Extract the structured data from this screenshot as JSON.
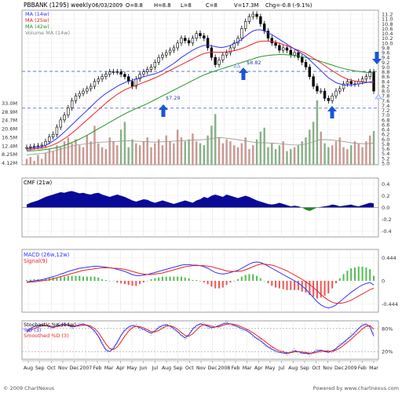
{
  "header": {
    "title": "PBBANK (1295) weekly",
    "date": "06/03/2009",
    "open": "O=8.8",
    "high": "H=8.8",
    "low": "L=8",
    "close": "C=8",
    "volume": "V=17.3M",
    "change": "Chg=-0.8 (-9.1%)"
  },
  "footer": {
    "copyright": "© 2009 ChartNexus",
    "powered": "Powered by www.chartnexus.com"
  },
  "colors": {
    "ma14": "#3333ff",
    "ma25": "#ee2222",
    "ma42": "#229922",
    "volume_up": "#c89890",
    "volume_down": "#88b088",
    "cmf_fill": "#0a0a99",
    "macd": "#3333ff",
    "signal": "#ee2222",
    "annotation_arrow": "#1a55d6",
    "support_line": "#3355cc"
  },
  "chart_data": [
    {
      "type": "candlestick",
      "title": "PBBANK (1295) weekly",
      "legend": [
        "MA (14w)",
        "MA (25w)",
        "MA (42w)",
        "Volume MA (14w)"
      ],
      "x_tick_labels": [
        "Aug",
        "Sep",
        "Oct",
        "Nov",
        "Dec",
        "2007",
        "Feb",
        "Mar",
        "Apr",
        "May",
        "Jun",
        "Jul",
        "Aug",
        "Sep",
        "Oct",
        "Nov",
        "Dec",
        "2008",
        "Feb",
        "Mar",
        "Apr",
        "May",
        "Jul",
        "Aug",
        "Sep",
        "Oct",
        "Nov",
        "Dec",
        "2009",
        "Feb",
        "Mar"
      ],
      "y_ticks": [
        "11.2",
        "11.0",
        "10.8",
        "10.6",
        "10.4",
        "10.2",
        "10.0",
        "9.8",
        "9.6",
        "9.4",
        "9.2",
        "9.0",
        "8.8",
        "8.6",
        "8.4",
        "8.2",
        "8.0",
        "7.8",
        "7.6",
        "7.4",
        "7.2",
        "7.0",
        "6.8",
        "6.6",
        "6.4",
        "6.2",
        "6.0",
        "5.8",
        "5.6",
        "5.4",
        "5.2",
        "5.0"
      ],
      "ylim": [
        5.0,
        11.3
      ],
      "volume_ticks": [
        "33.0M",
        "28.9M",
        "24.7M",
        "20.6M",
        "16.5M",
        "12.4M",
        "8.25M",
        "4.12M"
      ],
      "annotations": [
        "$7.29",
        "$8.82"
      ],
      "support_levels": [
        8.82,
        7.29
      ],
      "close_weekly": [
        5.65,
        5.68,
        5.7,
        5.72,
        5.75,
        5.9,
        6.1,
        6.2,
        6.5,
        6.8,
        7.0,
        7.3,
        7.6,
        7.8,
        7.9,
        8.0,
        8.1,
        8.2,
        8.4,
        8.5,
        8.6,
        8.7,
        8.8,
        8.8,
        8.8,
        8.7,
        8.6,
        8.4,
        8.2,
        8.5,
        8.7,
        8.8,
        8.9,
        9.0,
        9.2,
        9.4,
        9.5,
        9.6,
        9.7,
        9.8,
        10.0,
        10.2,
        10.1,
        10.0,
        10.2,
        10.4,
        10.3,
        10.2,
        9.8,
        9.4,
        9.1,
        9.3,
        9.5,
        9.6,
        9.8,
        10.0,
        10.2,
        10.6,
        10.9,
        11.1,
        11.2,
        11.1,
        10.8,
        10.5,
        10.2,
        10.0,
        9.9,
        9.7,
        9.8,
        9.7,
        9.5,
        9.6,
        9.4,
        9.2,
        9.0,
        8.6,
        8.2,
        8.0,
        8.0,
        7.7,
        7.6,
        7.8,
        8.0,
        8.1,
        8.3,
        8.4,
        8.3,
        8.3,
        8.4,
        8.5,
        8.6,
        8.8,
        8.0
      ],
      "ma14": [
        5.6,
        5.62,
        5.64,
        5.66,
        5.68,
        5.74,
        5.82,
        5.92,
        6.03,
        6.16,
        6.3,
        6.45,
        6.6,
        6.75,
        6.9,
        7.05,
        7.2,
        7.35,
        7.5,
        7.65,
        7.78,
        7.9,
        8.0,
        8.1,
        8.2,
        8.28,
        8.35,
        8.42,
        8.45,
        8.5,
        8.55,
        8.6,
        8.64,
        8.68,
        8.72,
        8.78,
        8.85,
        8.95,
        9.05,
        9.15,
        9.27,
        9.4,
        9.5,
        9.6,
        9.7,
        9.78,
        9.85,
        9.9,
        9.9,
        9.88,
        9.85,
        9.82,
        9.82,
        9.85,
        9.9,
        9.98,
        10.05,
        10.15,
        10.28,
        10.4,
        10.5,
        10.55,
        10.55,
        10.5,
        10.42,
        10.35,
        10.25,
        10.15,
        10.05,
        9.95,
        9.85,
        9.75,
        9.65,
        9.55,
        9.45,
        9.3,
        9.15,
        9.0,
        8.85,
        8.7,
        8.55,
        8.45,
        8.35,
        8.3,
        8.25,
        8.25,
        8.25,
        8.28,
        8.3,
        8.32,
        8.35,
        8.38,
        8.4
      ],
      "ma25": [
        5.55,
        5.57,
        5.59,
        5.61,
        5.63,
        5.66,
        5.7,
        5.76,
        5.83,
        5.92,
        6.02,
        6.13,
        6.25,
        6.38,
        6.52,
        6.66,
        6.8,
        6.94,
        7.08,
        7.22,
        7.36,
        7.5,
        7.63,
        7.75,
        7.86,
        7.96,
        8.05,
        8.12,
        8.18,
        8.24,
        8.3,
        8.36,
        8.42,
        8.48,
        8.55,
        8.62,
        8.7,
        8.78,
        8.86,
        8.94,
        9.02,
        9.1,
        9.18,
        9.26,
        9.34,
        9.42,
        9.5,
        9.56,
        9.6,
        9.62,
        9.62,
        9.62,
        9.62,
        9.63,
        9.65,
        9.68,
        9.72,
        9.77,
        9.83,
        9.9,
        9.97,
        10.03,
        10.07,
        10.08,
        10.08,
        10.06,
        10.03,
        9.99,
        9.94,
        9.88,
        9.82,
        9.76,
        9.7,
        9.63,
        9.55,
        9.46,
        9.37,
        9.27,
        9.17,
        9.06,
        8.95,
        8.85,
        8.75,
        8.65,
        8.57,
        8.5,
        8.45,
        8.42,
        8.4,
        8.38,
        8.37,
        8.36,
        8.35
      ],
      "ma42": [
        5.5,
        5.51,
        5.52,
        5.53,
        5.55,
        5.57,
        5.59,
        5.62,
        5.65,
        5.69,
        5.74,
        5.8,
        5.86,
        5.93,
        6.0,
        6.08,
        6.16,
        6.25,
        6.34,
        6.43,
        6.52,
        6.61,
        6.7,
        6.79,
        6.88,
        6.97,
        7.05,
        7.13,
        7.2,
        7.27,
        7.34,
        7.41,
        7.48,
        7.56,
        7.64,
        7.72,
        7.8,
        7.88,
        7.96,
        8.04,
        8.12,
        8.2,
        8.28,
        8.36,
        8.44,
        8.52,
        8.6,
        8.67,
        8.73,
        8.79,
        8.84,
        8.89,
        8.94,
        8.99,
        9.04,
        9.09,
        9.14,
        9.19,
        9.24,
        9.29,
        9.34,
        9.39,
        9.43,
        9.46,
        9.48,
        9.5,
        9.51,
        9.52,
        9.52,
        9.51,
        9.5,
        9.48,
        9.46,
        9.43,
        9.4,
        9.36,
        9.32,
        9.28,
        9.23,
        9.18,
        9.13,
        9.08,
        9.03,
        8.98,
        8.94,
        8.9,
        8.87,
        8.84,
        8.82,
        8.8,
        8.78,
        8.77,
        8.76
      ],
      "volume_m": [
        3,
        4,
        2,
        5,
        3,
        6,
        8,
        7,
        10,
        9,
        12,
        14,
        11,
        13,
        10,
        9,
        15,
        12,
        20,
        11,
        9,
        8,
        14,
        12,
        10,
        18,
        22,
        9,
        13,
        11,
        10,
        12,
        14,
        9,
        11,
        13,
        10,
        15,
        12,
        11,
        18,
        14,
        12,
        13,
        16,
        12,
        11,
        10,
        15,
        20,
        26,
        14,
        11,
        13,
        12,
        10,
        9,
        11,
        14,
        8,
        10,
        13,
        17,
        19,
        9,
        11,
        8,
        10,
        12,
        7,
        8,
        9,
        10,
        12,
        14,
        18,
        22,
        33,
        17,
        11,
        9,
        10,
        12,
        14,
        9,
        8,
        10,
        12,
        11,
        9,
        12,
        15,
        17.3
      ],
      "volume_ma14": [
        5,
        5.2,
        5.4,
        5.6,
        5.8,
        6.1,
        6.5,
        7,
        7.5,
        8,
        8.5,
        9,
        9.5,
        10,
        10.3,
        10.5,
        10.8,
        11,
        11.3,
        11.5,
        11.6,
        11.7,
        11.8,
        11.9,
        12,
        12.1,
        12.2,
        12.3,
        12.2,
        12.1,
        12,
        11.9,
        11.8,
        11.7,
        11.6,
        11.7,
        11.8,
        11.9,
        12,
        12.1,
        12.2,
        12.3,
        12.4,
        12.5,
        12.6,
        12.7,
        12.8,
        12.9,
        13.1,
        13.4,
        13.8,
        13.9,
        13.8,
        13.6,
        13.4,
        13.1,
        12.8,
        12.5,
        12.2,
        11.9,
        11.6,
        11.4,
        11.3,
        11.3,
        11.2,
        11.1,
        11,
        10.8,
        10.6,
        10.4,
        10.2,
        10.1,
        10.1,
        10.3,
        10.6,
        11.1,
        11.7,
        12.5,
        12.8,
        12.9,
        12.8,
        12.6,
        12.4,
        12.2,
        11.9,
        11.6,
        11.3,
        11.1,
        10.9,
        10.8,
        10.8,
        10.9,
        11.1
      ]
    },
    {
      "type": "area",
      "title": "CMF (21w)",
      "y_ticks": [
        "0.4",
        "0.2",
        "0.0",
        "-0.2",
        "-0.4"
      ],
      "ylim": [
        -0.5,
        0.5
      ],
      "values": [
        0.05,
        0.08,
        0.1,
        0.12,
        0.15,
        0.18,
        0.2,
        0.22,
        0.24,
        0.26,
        0.25,
        0.27,
        0.28,
        0.26,
        0.24,
        0.25,
        0.23,
        0.22,
        0.24,
        0.25,
        0.22,
        0.2,
        0.18,
        0.2,
        0.22,
        0.2,
        0.18,
        0.15,
        0.12,
        0.1,
        0.12,
        0.14,
        0.13,
        0.1,
        0.08,
        0.1,
        0.12,
        0.1,
        0.08,
        0.06,
        0.08,
        0.1,
        0.12,
        0.1,
        0.08,
        0.12,
        0.14,
        0.18,
        0.16,
        0.2,
        0.22,
        0.2,
        0.18,
        0.22,
        0.2,
        0.18,
        0.16,
        0.18,
        0.2,
        0.18,
        0.15,
        0.12,
        0.1,
        0.08,
        0.06,
        0.05,
        0.06,
        0.08,
        0.06,
        0.04,
        0.02,
        0.03,
        0.02,
        0.0,
        -0.04,
        -0.06,
        -0.03,
        0.0,
        0.01,
        0.02,
        0.03,
        0.05,
        0.04,
        0.02,
        0.03,
        0.04,
        0.05,
        0.03,
        0.02,
        0.04,
        0.06,
        0.08,
        0.07
      ]
    },
    {
      "type": "line",
      "title": "MACD (26w,12w)",
      "legend": [
        "MACD (26w,12w)",
        "Signal(9)"
      ],
      "y_ticks": [
        "0.444",
        "0",
        "-0.444"
      ],
      "ylim": [
        -0.6,
        0.6
      ],
      "macd": [
        -0.02,
        -0.01,
        0.0,
        0.01,
        0.02,
        0.04,
        0.06,
        0.08,
        0.1,
        0.13,
        0.15,
        0.18,
        0.2,
        0.22,
        0.24,
        0.25,
        0.26,
        0.27,
        0.28,
        0.28,
        0.27,
        0.26,
        0.25,
        0.24,
        0.22,
        0.2,
        0.18,
        0.15,
        0.12,
        0.1,
        0.1,
        0.11,
        0.12,
        0.14,
        0.16,
        0.18,
        0.2,
        0.22,
        0.24,
        0.26,
        0.28,
        0.3,
        0.31,
        0.31,
        0.3,
        0.3,
        0.29,
        0.27,
        0.24,
        0.2,
        0.16,
        0.14,
        0.13,
        0.14,
        0.16,
        0.18,
        0.2,
        0.24,
        0.28,
        0.32,
        0.35,
        0.36,
        0.35,
        0.32,
        0.28,
        0.24,
        0.2,
        0.16,
        0.12,
        0.08,
        0.04,
        0.0,
        -0.04,
        -0.1,
        -0.16,
        -0.24,
        -0.32,
        -0.4,
        -0.46,
        -0.5,
        -0.52,
        -0.5,
        -0.46,
        -0.4,
        -0.34,
        -0.28,
        -0.22,
        -0.17,
        -0.12,
        -0.08,
        -0.05,
        -0.03,
        -0.08
      ],
      "signal": [
        -0.03,
        -0.025,
        -0.02,
        -0.01,
        0.0,
        0.01,
        0.02,
        0.04,
        0.06,
        0.08,
        0.1,
        0.12,
        0.14,
        0.16,
        0.18,
        0.2,
        0.21,
        0.22,
        0.23,
        0.24,
        0.25,
        0.25,
        0.25,
        0.24,
        0.24,
        0.23,
        0.22,
        0.2,
        0.18,
        0.16,
        0.14,
        0.13,
        0.12,
        0.12,
        0.13,
        0.14,
        0.15,
        0.17,
        0.19,
        0.21,
        0.23,
        0.25,
        0.27,
        0.28,
        0.29,
        0.29,
        0.29,
        0.29,
        0.28,
        0.27,
        0.25,
        0.23,
        0.21,
        0.19,
        0.18,
        0.18,
        0.18,
        0.19,
        0.21,
        0.24,
        0.27,
        0.3,
        0.32,
        0.32,
        0.31,
        0.3,
        0.28,
        0.25,
        0.22,
        0.19,
        0.15,
        0.11,
        0.07,
        0.03,
        -0.02,
        -0.07,
        -0.13,
        -0.19,
        -0.26,
        -0.32,
        -0.37,
        -0.41,
        -0.43,
        -0.43,
        -0.42,
        -0.4,
        -0.37,
        -0.33,
        -0.29,
        -0.25,
        -0.21,
        -0.17,
        -0.14
      ]
    },
    {
      "type": "line",
      "title": "Stochastic %K (14w)",
      "legend": [
        "Stochastic %K (14w)",
        "%D (3)",
        "Smoothed %D (3)"
      ],
      "y_ticks": [
        "80%",
        "20%"
      ],
      "ylim": [
        0,
        100
      ],
      "d3": [
        75,
        80,
        85,
        88,
        90,
        88,
        85,
        82,
        86,
        90,
        92,
        88,
        84,
        86,
        90,
        92,
        88,
        82,
        74,
        60,
        40,
        25,
        20,
        28,
        45,
        62,
        75,
        84,
        88,
        86,
        82,
        78,
        72,
        68,
        74,
        82,
        88,
        90,
        86,
        80,
        72,
        62,
        56,
        64,
        78,
        88,
        92,
        90,
        86,
        82,
        84,
        88,
        92,
        94,
        92,
        88,
        84,
        80,
        76,
        70,
        62,
        54,
        48,
        40,
        32,
        26,
        22,
        18,
        16,
        15,
        18,
        22,
        20,
        16,
        15,
        14,
        18,
        22,
        24,
        20,
        18,
        22,
        28,
        36,
        44,
        52,
        60,
        70,
        80,
        88,
        92,
        84,
        60
      ],
      "smoothed": [
        72,
        76,
        80,
        84,
        87,
        88,
        87,
        85,
        85,
        87,
        89,
        89,
        87,
        86,
        87,
        89,
        89,
        86,
        80,
        70,
        55,
        40,
        28,
        25,
        32,
        45,
        60,
        73,
        82,
        86,
        85,
        82,
        77,
        72,
        71,
        75,
        81,
        86,
        87,
        84,
        78,
        70,
        62,
        60,
        66,
        76,
        86,
        90,
        89,
        86,
        84,
        85,
        88,
        91,
        92,
        91,
        88,
        84,
        80,
        75,
        69,
        62,
        55,
        48,
        40,
        33,
        27,
        22,
        19,
        17,
        17,
        19,
        20,
        19,
        17,
        16,
        16,
        18,
        21,
        22,
        21,
        21,
        24,
        29,
        36,
        44,
        52,
        61,
        70,
        79,
        86,
        88,
        78
      ]
    }
  ]
}
